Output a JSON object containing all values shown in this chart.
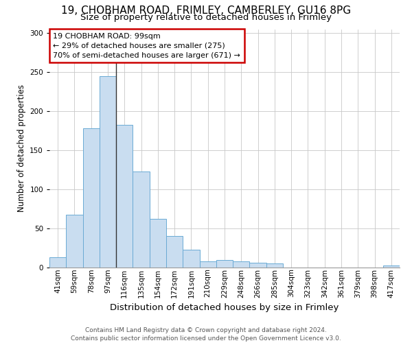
{
  "title_line1": "19, CHOBHAM ROAD, FRIMLEY, CAMBERLEY, GU16 8PG",
  "title_line2": "Size of property relative to detached houses in Frimley",
  "xlabel": "Distribution of detached houses by size in Frimley",
  "ylabel": "Number of detached properties",
  "categories": [
    "41sqm",
    "59sqm",
    "78sqm",
    "97sqm",
    "116sqm",
    "135sqm",
    "154sqm",
    "172sqm",
    "191sqm",
    "210sqm",
    "229sqm",
    "248sqm",
    "266sqm",
    "285sqm",
    "304sqm",
    "323sqm",
    "342sqm",
    "361sqm",
    "379sqm",
    "398sqm",
    "417sqm"
  ],
  "values": [
    13,
    68,
    178,
    245,
    183,
    123,
    62,
    40,
    23,
    8,
    10,
    8,
    6,
    5,
    0,
    0,
    0,
    0,
    0,
    0,
    3
  ],
  "bar_color": "#c9ddf0",
  "bar_edge_color": "#6aaad4",
  "vline_index": 3,
  "vline_color": "#333333",
  "annotation_text": "19 CHOBHAM ROAD: 99sqm\n← 29% of detached houses are smaller (275)\n70% of semi-detached houses are larger (671) →",
  "annotation_box_facecolor": "#ffffff",
  "annotation_box_edgecolor": "#cc0000",
  "footer_text": "Contains HM Land Registry data © Crown copyright and database right 2024.\nContains public sector information licensed under the Open Government Licence v3.0.",
  "ylim": [
    0,
    305
  ],
  "background_color": "#ffffff",
  "grid_color": "#c8c8c8",
  "title1_fontsize": 11,
  "title2_fontsize": 9.5,
  "ylabel_fontsize": 8.5,
  "xlabel_fontsize": 9.5,
  "tick_fontsize": 7.5,
  "footer_fontsize": 6.5
}
